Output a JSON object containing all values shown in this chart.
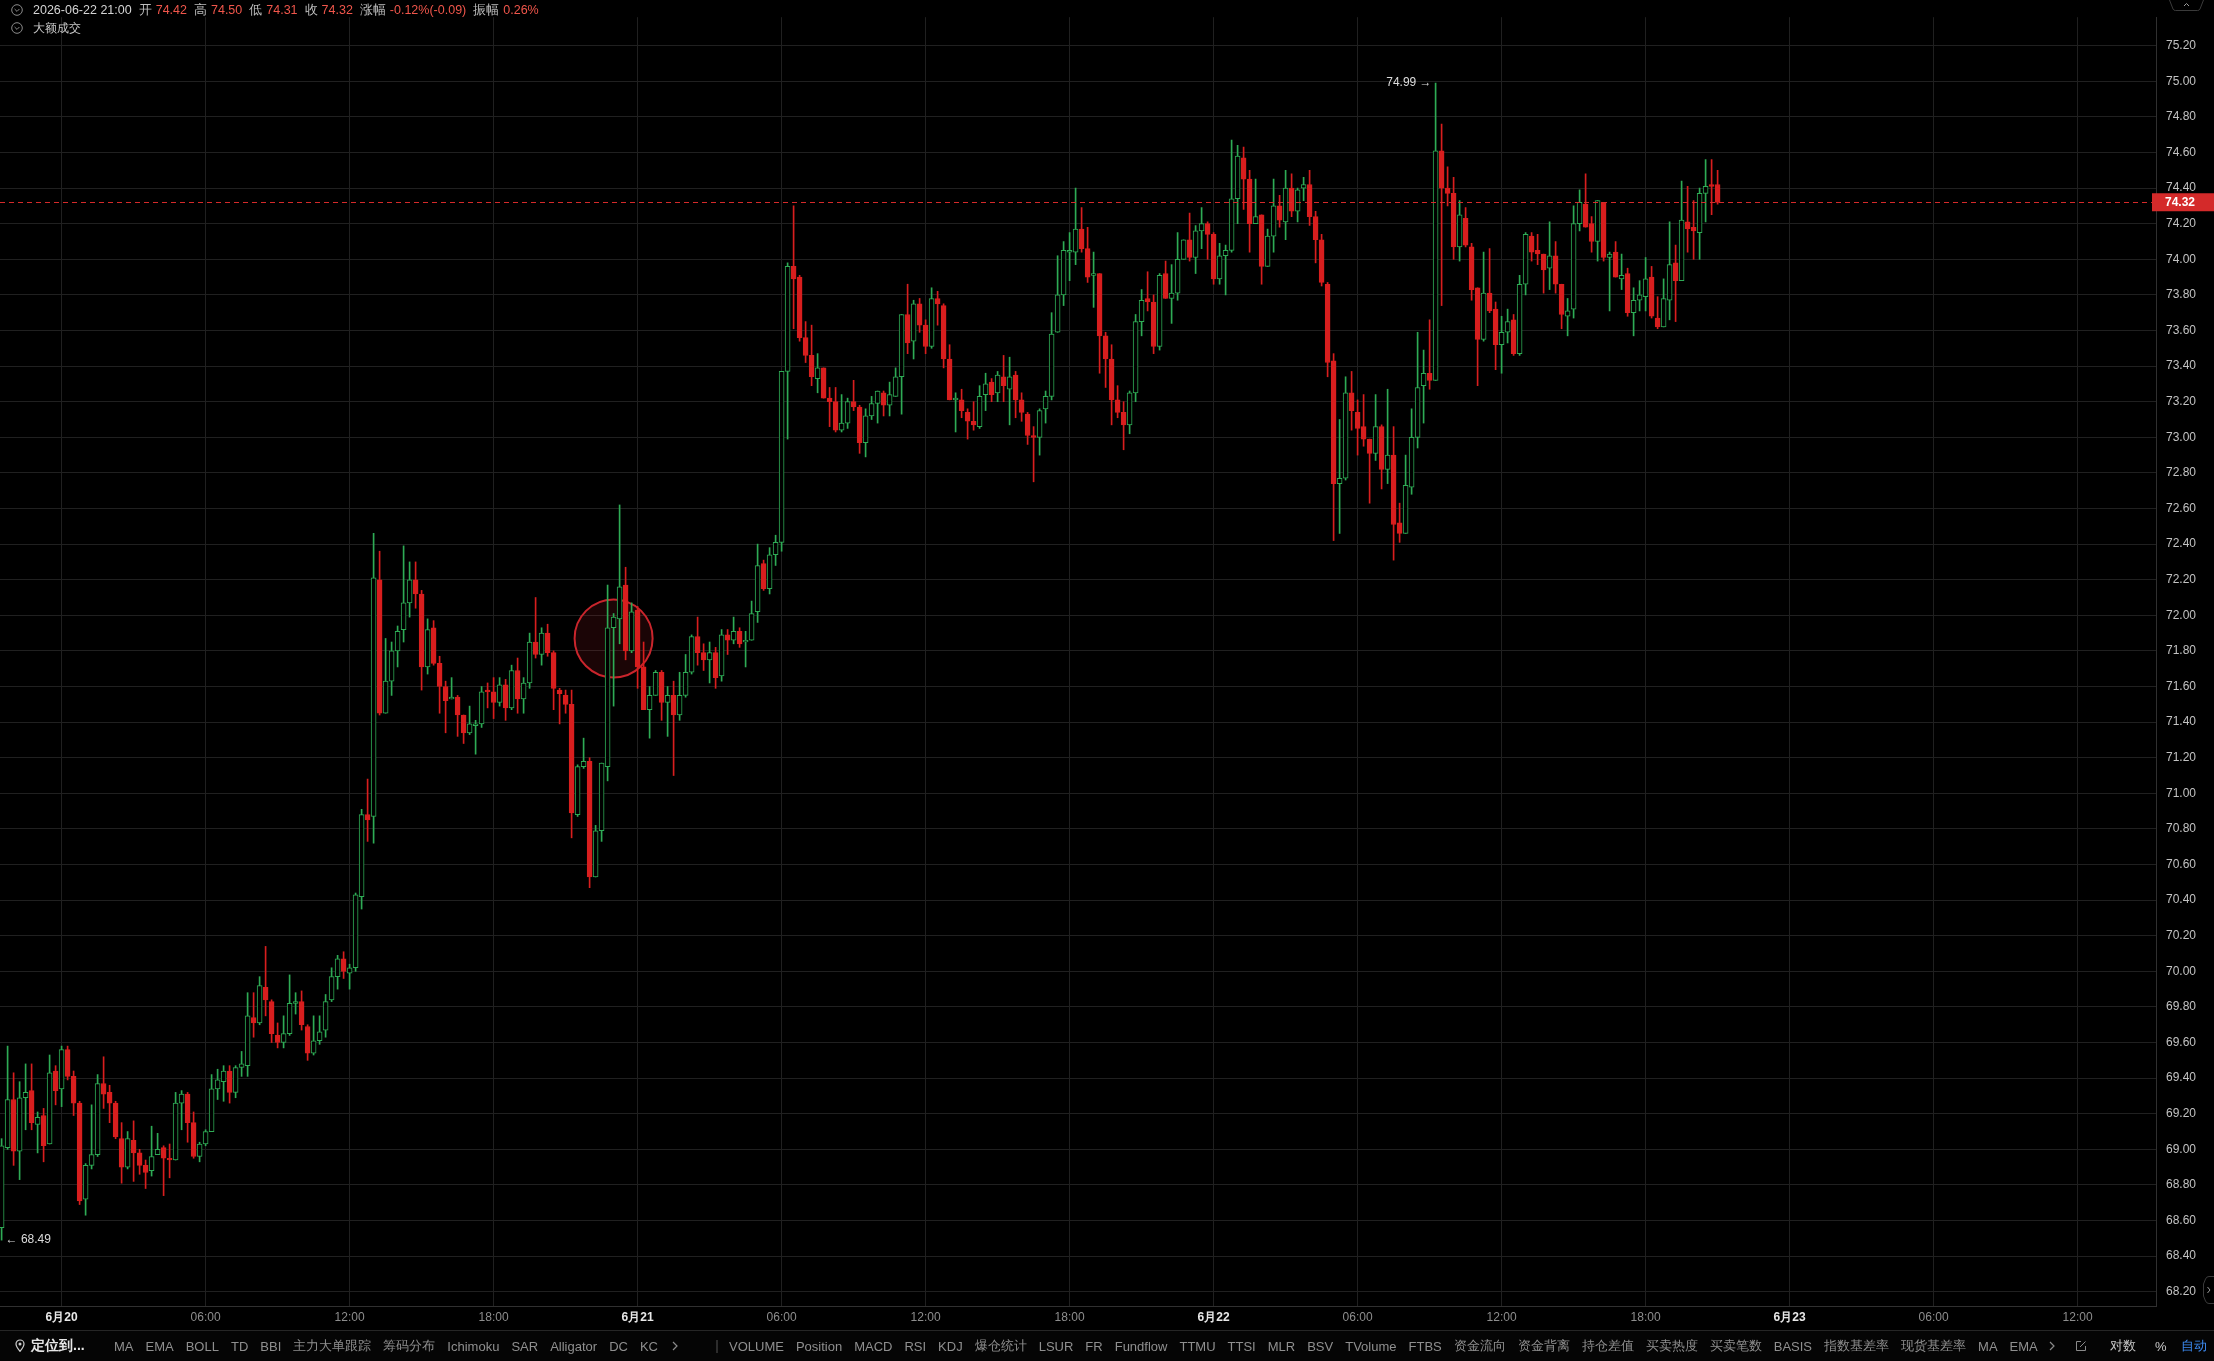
{
  "chart_data": {
    "type": "candlestick",
    "title": "2026-06-22 21:00 开 74.42 高 74.50 低 74.31 收 74.32 涨幅 -0.12%(-0.09) 振幅 0.26%",
    "subtitle": "大额成交",
    "x": [
      "2026-06-19T21:30",
      "2026-06-19T21:45",
      "2026-06-19T22:00",
      "2026-06-19T22:15",
      "2026-06-19T22:30",
      "2026-06-19T22:45",
      "2026-06-19T23:00",
      "2026-06-19T23:15",
      "2026-06-19T23:30",
      "2026-06-19T23:45",
      "2026-06-20T00:00",
      "2026-06-20T00:15",
      "2026-06-20T00:30",
      "2026-06-20T00:45",
      "2026-06-20T01:00",
      "2026-06-20T01:15",
      "2026-06-20T01:30",
      "2026-06-20T01:45",
      "2026-06-20T02:00",
      "2026-06-20T02:15",
      "2026-06-20T02:30",
      "2026-06-20T02:45",
      "2026-06-20T03:00",
      "2026-06-20T03:15",
      "2026-06-20T03:30",
      "2026-06-20T03:45",
      "2026-06-20T04:00",
      "2026-06-20T04:15",
      "2026-06-20T04:30",
      "2026-06-20T04:45",
      "2026-06-20T05:00",
      "2026-06-20T05:15",
      "2026-06-20T05:30",
      "2026-06-20T05:45",
      "2026-06-20T06:00",
      "2026-06-20T06:15",
      "2026-06-20T06:30",
      "2026-06-20T06:45",
      "2026-06-20T07:00",
      "2026-06-20T07:15",
      "2026-06-20T07:30",
      "2026-06-20T07:45",
      "2026-06-20T08:00",
      "2026-06-20T08:15",
      "2026-06-20T08:30",
      "2026-06-20T08:45",
      "2026-06-20T09:00",
      "2026-06-20T09:15",
      "2026-06-20T09:30",
      "2026-06-20T09:45",
      "2026-06-20T10:00",
      "2026-06-20T10:15",
      "2026-06-20T10:30",
      "2026-06-20T10:45",
      "2026-06-20T11:00",
      "2026-06-20T11:15",
      "2026-06-20T11:30",
      "2026-06-20T11:45",
      "2026-06-20T12:00",
      "2026-06-20T12:15",
      "2026-06-20T12:30",
      "2026-06-20T12:45",
      "2026-06-20T13:00",
      "2026-06-20T13:15",
      "2026-06-20T13:30",
      "2026-06-20T13:45",
      "2026-06-20T14:00",
      "2026-06-20T14:15",
      "2026-06-20T14:30",
      "2026-06-20T14:45",
      "2026-06-20T15:00",
      "2026-06-20T15:15",
      "2026-06-20T15:30",
      "2026-06-20T15:45",
      "2026-06-20T16:00",
      "2026-06-20T16:15",
      "2026-06-20T16:30",
      "2026-06-20T16:45",
      "2026-06-20T17:00",
      "2026-06-20T17:15",
      "2026-06-20T17:30",
      "2026-06-20T17:45",
      "2026-06-20T18:00",
      "2026-06-20T18:15",
      "2026-06-20T18:30",
      "2026-06-20T18:45",
      "2026-06-20T19:00",
      "2026-06-20T19:15",
      "2026-06-20T19:30",
      "2026-06-20T19:45",
      "2026-06-20T20:00",
      "2026-06-20T20:15",
      "2026-06-20T20:30",
      "2026-06-20T20:45",
      "2026-06-20T21:00",
      "2026-06-20T21:15",
      "2026-06-20T21:30",
      "2026-06-20T21:45",
      "2026-06-20T22:00",
      "2026-06-20T22:15",
      "2026-06-20T22:30",
      "2026-06-20T22:45",
      "2026-06-20T23:00",
      "2026-06-20T23:15",
      "2026-06-20T23:30",
      "2026-06-20T23:45",
      "2026-06-21T00:00",
      "2026-06-21T00:15",
      "2026-06-21T00:30",
      "2026-06-21T00:45",
      "2026-06-21T01:00",
      "2026-06-21T01:15",
      "2026-06-21T01:30",
      "2026-06-21T01:45",
      "2026-06-21T02:00",
      "2026-06-21T02:15",
      "2026-06-21T02:30",
      "2026-06-21T02:45",
      "2026-06-21T03:00",
      "2026-06-21T03:15",
      "2026-06-21T03:30",
      "2026-06-21T03:45",
      "2026-06-21T04:00",
      "2026-06-21T04:15",
      "2026-06-21T04:30",
      "2026-06-21T04:45",
      "2026-06-21T05:00",
      "2026-06-21T05:15",
      "2026-06-21T05:30",
      "2026-06-21T05:45",
      "2026-06-21T06:00",
      "2026-06-21T06:15",
      "2026-06-21T06:30",
      "2026-06-21T06:45",
      "2026-06-21T07:00",
      "2026-06-21T07:15",
      "2026-06-21T07:30",
      "2026-06-21T07:45",
      "2026-06-21T08:00",
      "2026-06-21T08:15",
      "2026-06-21T08:30",
      "2026-06-21T08:45",
      "2026-06-21T09:00",
      "2026-06-21T09:15",
      "2026-06-21T09:30",
      "2026-06-21T09:45",
      "2026-06-21T10:00",
      "2026-06-21T10:15",
      "2026-06-21T10:30",
      "2026-06-21T10:45",
      "2026-06-21T11:00",
      "2026-06-21T11:15",
      "2026-06-21T11:30",
      "2026-06-21T11:45",
      "2026-06-21T12:00",
      "2026-06-21T12:15",
      "2026-06-21T12:30",
      "2026-06-21T12:45",
      "2026-06-21T13:00",
      "2026-06-21T13:15",
      "2026-06-21T13:30",
      "2026-06-21T13:45",
      "2026-06-21T14:00",
      "2026-06-21T14:15",
      "2026-06-21T14:30",
      "2026-06-21T14:45",
      "2026-06-21T15:00",
      "2026-06-21T15:15",
      "2026-06-21T15:30",
      "2026-06-21T15:45",
      "2026-06-21T16:00",
      "2026-06-21T16:15",
      "2026-06-21T16:30",
      "2026-06-21T16:45",
      "2026-06-21T17:00",
      "2026-06-21T17:15",
      "2026-06-21T17:30",
      "2026-06-21T17:45",
      "2026-06-21T18:00",
      "2026-06-21T18:15",
      "2026-06-21T18:30",
      "2026-06-21T18:45",
      "2026-06-21T19:00",
      "2026-06-21T19:15",
      "2026-06-21T19:30",
      "2026-06-21T19:45",
      "2026-06-21T20:00",
      "2026-06-21T20:15",
      "2026-06-21T20:30",
      "2026-06-21T20:45",
      "2026-06-21T21:00",
      "2026-06-21T21:15",
      "2026-06-21T21:30",
      "2026-06-21T21:45",
      "2026-06-21T22:00",
      "2026-06-21T22:15",
      "2026-06-21T22:30",
      "2026-06-21T22:45",
      "2026-06-21T23:00",
      "2026-06-21T23:15",
      "2026-06-21T23:30",
      "2026-06-21T23:45",
      "2026-06-22T00:00",
      "2026-06-22T00:15",
      "2026-06-22T00:30",
      "2026-06-22T00:45",
      "2026-06-22T01:00",
      "2026-06-22T01:15",
      "2026-06-22T01:30",
      "2026-06-22T01:45",
      "2026-06-22T02:00",
      "2026-06-22T02:15",
      "2026-06-22T02:30",
      "2026-06-22T02:45",
      "2026-06-22T03:00",
      "2026-06-22T03:15",
      "2026-06-22T03:30",
      "2026-06-22T03:45",
      "2026-06-22T04:00",
      "2026-06-22T04:15",
      "2026-06-22T04:30",
      "2026-06-22T04:45",
      "2026-06-22T05:00",
      "2026-06-22T05:15",
      "2026-06-22T05:30",
      "2026-06-22T05:45",
      "2026-06-22T06:00",
      "2026-06-22T06:15",
      "2026-06-22T06:30",
      "2026-06-22T06:45",
      "2026-06-22T07:00",
      "2026-06-22T07:15",
      "2026-06-22T07:30",
      "2026-06-22T07:45",
      "2026-06-22T08:00",
      "2026-06-22T08:15",
      "2026-06-22T08:30",
      "2026-06-22T08:45",
      "2026-06-22T09:00",
      "2026-06-22T09:15",
      "2026-06-22T09:30",
      "2026-06-22T09:45",
      "2026-06-22T10:00",
      "2026-06-22T10:15",
      "2026-06-22T10:30",
      "2026-06-22T10:45",
      "2026-06-22T11:00",
      "2026-06-22T11:15",
      "2026-06-22T11:30",
      "2026-06-22T11:45",
      "2026-06-22T12:00",
      "2026-06-22T12:15",
      "2026-06-22T12:30",
      "2026-06-22T12:45",
      "2026-06-22T13:00",
      "2026-06-22T13:15",
      "2026-06-22T13:30",
      "2026-06-22T13:45",
      "2026-06-22T14:00",
      "2026-06-22T14:15",
      "2026-06-22T14:30",
      "2026-06-22T14:45",
      "2026-06-22T15:00",
      "2026-06-22T15:15",
      "2026-06-22T15:30",
      "2026-06-22T15:45",
      "2026-06-22T16:00",
      "2026-06-22T16:15",
      "2026-06-22T16:30",
      "2026-06-22T16:45",
      "2026-06-22T17:00",
      "2026-06-22T17:15",
      "2026-06-22T17:30",
      "2026-06-22T17:45",
      "2026-06-22T18:00",
      "2026-06-22T18:15",
      "2026-06-22T18:30",
      "2026-06-22T18:45",
      "2026-06-22T19:00",
      "2026-06-22T19:15",
      "2026-06-22T19:30",
      "2026-06-22T19:45",
      "2026-06-22T20:00",
      "2026-06-22T20:15",
      "2026-06-22T20:30",
      "2026-06-22T20:45",
      "2026-06-22T21:00"
    ],
    "ohlc": [
      [
        68.56,
        69.06,
        68.49,
        69.02
      ],
      [
        69.01,
        69.58,
        69.0,
        69.28
      ],
      [
        69.28,
        69.43,
        68.91,
        68.99
      ],
      [
        68.99,
        69.38,
        68.83,
        69.29
      ],
      [
        69.29,
        69.48,
        69.11,
        69.32
      ],
      [
        69.33,
        69.48,
        69.11,
        69.15
      ],
      [
        69.14,
        69.21,
        68.98,
        69.18
      ],
      [
        69.19,
        69.23,
        68.93,
        69.02
      ],
      [
        69.03,
        69.53,
        69.03,
        69.43
      ],
      [
        69.44,
        69.47,
        69.25,
        69.33
      ],
      [
        69.34,
        69.58,
        69.24,
        69.56
      ],
      [
        69.56,
        69.58,
        69.39,
        69.41
      ],
      [
        69.41,
        69.44,
        69.19,
        69.26
      ],
      [
        69.26,
        69.27,
        68.69,
        68.71
      ],
      [
        68.72,
        68.92,
        68.63,
        68.91
      ],
      [
        68.91,
        69.25,
        68.89,
        68.97
      ],
      [
        68.97,
        69.42,
        68.96,
        69.37
      ],
      [
        69.37,
        69.52,
        69.23,
        69.31
      ],
      [
        69.32,
        69.36,
        69.15,
        69.26
      ],
      [
        69.26,
        69.27,
        69.06,
        69.07
      ],
      [
        69.06,
        69.15,
        68.81,
        68.9
      ],
      [
        68.9,
        69.1,
        68.89,
        69.06
      ],
      [
        69.05,
        69.16,
        68.82,
        68.98
      ],
      [
        68.98,
        69.0,
        68.86,
        68.91
      ],
      [
        68.91,
        68.94,
        68.78,
        68.87
      ],
      [
        68.88,
        69.13,
        68.85,
        68.96
      ],
      [
        68.97,
        69.09,
        68.97,
        69.0
      ],
      [
        69.01,
        69.02,
        68.74,
        68.95
      ],
      [
        68.95,
        69.03,
        68.84,
        68.94
      ],
      [
        68.94,
        69.32,
        68.94,
        69.26
      ],
      [
        69.26,
        69.33,
        69.11,
        69.31
      ],
      [
        69.31,
        69.32,
        69.04,
        69.15
      ],
      [
        69.15,
        69.21,
        68.95,
        68.96
      ],
      [
        68.96,
        69.04,
        68.93,
        69.03
      ],
      [
        69.03,
        69.11,
        69.02,
        69.1
      ],
      [
        69.1,
        69.42,
        69.1,
        69.34
      ],
      [
        69.34,
        69.45,
        69.28,
        69.39
      ],
      [
        69.38,
        69.47,
        69.27,
        69.44
      ],
      [
        69.44,
        69.47,
        69.26,
        69.32
      ],
      [
        69.32,
        69.47,
        69.29,
        69.46
      ],
      [
        69.46,
        69.55,
        69.41,
        69.48
      ],
      [
        69.47,
        69.88,
        69.41,
        69.75
      ],
      [
        69.74,
        69.88,
        69.63,
        69.71
      ],
      [
        69.71,
        69.97,
        69.7,
        69.92
      ],
      [
        69.91,
        70.14,
        69.75,
        69.84
      ],
      [
        69.83,
        69.84,
        69.6,
        69.65
      ],
      [
        69.64,
        69.71,
        69.57,
        69.6
      ],
      [
        69.6,
        69.75,
        69.57,
        69.65
      ],
      [
        69.65,
        69.98,
        69.64,
        69.82
      ],
      [
        69.82,
        69.88,
        69.76,
        69.83
      ],
      [
        69.83,
        69.89,
        69.67,
        69.7
      ],
      [
        69.69,
        69.7,
        69.5,
        69.54
      ],
      [
        69.54,
        69.75,
        69.53,
        69.61
      ],
      [
        69.61,
        69.75,
        69.59,
        69.66
      ],
      [
        69.67,
        69.87,
        69.63,
        69.83
      ],
      [
        69.84,
        70.02,
        69.83,
        69.97
      ],
      [
        69.97,
        70.09,
        69.9,
        70.07
      ],
      [
        70.07,
        70.11,
        69.96,
        70.0
      ],
      [
        69.99,
        70.04,
        69.9,
        70.02
      ],
      [
        70.02,
        70.44,
        70.0,
        70.43
      ],
      [
        70.42,
        70.91,
        70.35,
        70.88
      ],
      [
        70.88,
        71.08,
        70.73,
        70.85
      ],
      [
        70.87,
        72.46,
        70.72,
        72.21
      ],
      [
        72.2,
        72.36,
        71.44,
        71.45
      ],
      [
        71.45,
        71.87,
        71.45,
        71.63
      ],
      [
        71.63,
        71.85,
        71.55,
        71.8
      ],
      [
        71.8,
        71.94,
        71.71,
        71.91
      ],
      [
        71.92,
        72.39,
        71.85,
        72.07
      ],
      [
        72.07,
        72.3,
        71.99,
        72.2
      ],
      [
        72.2,
        72.3,
        72.04,
        72.12
      ],
      [
        72.12,
        72.14,
        71.58,
        71.71
      ],
      [
        71.71,
        71.98,
        71.67,
        71.92
      ],
      [
        71.93,
        71.97,
        71.72,
        71.73
      ],
      [
        71.73,
        71.77,
        71.45,
        71.6
      ],
      [
        71.6,
        71.63,
        71.34,
        71.52
      ],
      [
        71.53,
        71.65,
        71.53,
        71.54
      ],
      [
        71.54,
        71.55,
        71.32,
        71.44
      ],
      [
        71.44,
        71.44,
        71.28,
        71.34
      ],
      [
        71.34,
        71.49,
        71.33,
        71.39
      ],
      [
        71.38,
        71.41,
        71.22,
        71.39
      ],
      [
        71.39,
        71.6,
        71.37,
        71.57
      ],
      [
        71.58,
        71.62,
        71.48,
        71.57
      ],
      [
        71.57,
        71.65,
        71.42,
        71.51
      ],
      [
        71.51,
        71.65,
        71.49,
        71.61
      ],
      [
        71.61,
        71.64,
        71.41,
        71.48
      ],
      [
        71.48,
        71.72,
        71.47,
        71.69
      ],
      [
        71.69,
        71.76,
        71.45,
        71.53
      ],
      [
        71.53,
        71.65,
        71.45,
        71.62
      ],
      [
        71.62,
        71.9,
        71.59,
        71.85
      ],
      [
        71.85,
        72.1,
        71.76,
        71.78
      ],
      [
        71.78,
        71.93,
        71.72,
        71.9
      ],
      [
        71.9,
        71.95,
        71.77,
        71.79
      ],
      [
        71.79,
        71.8,
        71.47,
        71.59
      ],
      [
        71.58,
        71.59,
        71.39,
        71.56
      ],
      [
        71.55,
        71.58,
        71.45,
        71.5
      ],
      [
        71.5,
        71.58,
        70.75,
        70.89
      ],
      [
        70.88,
        71.16,
        70.87,
        71.15
      ],
      [
        71.15,
        71.31,
        71.14,
        71.18
      ],
      [
        71.18,
        71.2,
        70.47,
        70.53
      ],
      [
        70.53,
        70.82,
        70.53,
        70.79
      ],
      [
        70.79,
        71.17,
        70.73,
        71.17
      ],
      [
        71.15,
        72.17,
        71.07,
        71.93
      ],
      [
        71.93,
        72.01,
        71.49,
        71.99
      ],
      [
        71.98,
        72.62,
        71.84,
        72.16
      ],
      [
        72.17,
        72.27,
        71.75,
        71.8
      ],
      [
        71.8,
        72.07,
        71.79,
        72.02
      ],
      [
        72.03,
        72.05,
        71.59,
        71.71
      ],
      [
        71.71,
        71.85,
        71.47,
        71.47
      ],
      [
        71.47,
        71.6,
        71.31,
        71.55
      ],
      [
        71.55,
        71.69,
        71.55,
        71.68
      ],
      [
        71.68,
        71.69,
        71.41,
        71.51
      ],
      [
        71.51,
        71.6,
        71.32,
        71.55
      ],
      [
        71.55,
        71.63,
        71.1,
        71.44
      ],
      [
        71.44,
        71.68,
        71.41,
        71.55
      ],
      [
        71.55,
        71.78,
        71.54,
        71.68
      ],
      [
        71.68,
        71.89,
        71.67,
        71.88
      ],
      [
        71.88,
        71.99,
        71.72,
        71.79
      ],
      [
        71.79,
        71.84,
        71.69,
        71.75
      ],
      [
        71.75,
        71.85,
        71.62,
        71.79
      ],
      [
        71.79,
        71.82,
        71.59,
        71.65
      ],
      [
        71.66,
        71.92,
        71.63,
        71.89
      ],
      [
        71.89,
        71.92,
        71.78,
        71.86
      ],
      [
        71.86,
        71.99,
        71.84,
        71.91
      ],
      [
        71.91,
        71.93,
        71.82,
        71.84
      ],
      [
        71.85,
        71.91,
        71.71,
        71.86
      ],
      [
        71.86,
        72.08,
        71.86,
        72.01
      ],
      [
        72.02,
        72.4,
        71.96,
        72.28
      ],
      [
        72.29,
        72.31,
        72.14,
        72.15
      ],
      [
        72.15,
        72.38,
        72.12,
        72.34
      ],
      [
        72.34,
        72.45,
        72.28,
        72.41
      ],
      [
        72.41,
        73.37,
        72.36,
        73.37
      ],
      [
        73.37,
        73.98,
        72.99,
        73.96
      ],
      [
        73.96,
        74.3,
        73.61,
        73.89
      ],
      [
        73.9,
        73.91,
        73.54,
        73.56
      ],
      [
        73.56,
        73.65,
        73.42,
        73.46
      ],
      [
        73.46,
        73.63,
        73.29,
        73.34
      ],
      [
        73.33,
        73.47,
        73.25,
        73.39
      ],
      [
        73.39,
        73.39,
        73.22,
        73.22
      ],
      [
        73.22,
        73.28,
        73.06,
        73.2
      ],
      [
        73.2,
        73.28,
        73.03,
        73.04
      ],
      [
        73.04,
        73.24,
        73.03,
        73.08
      ],
      [
        73.08,
        73.22,
        73.05,
        73.2
      ],
      [
        73.2,
        73.32,
        73.15,
        73.17
      ],
      [
        73.17,
        73.18,
        72.91,
        72.97
      ],
      [
        72.97,
        73.16,
        72.89,
        73.12
      ],
      [
        73.12,
        73.23,
        73.1,
        73.19
      ],
      [
        73.19,
        73.26,
        73.08,
        73.26
      ],
      [
        73.25,
        73.26,
        73.12,
        73.18
      ],
      [
        73.18,
        73.31,
        73.12,
        73.24
      ],
      [
        73.23,
        73.39,
        73.23,
        73.34
      ],
      [
        73.34,
        73.69,
        73.13,
        73.69
      ],
      [
        73.69,
        73.86,
        73.47,
        73.53
      ],
      [
        73.54,
        73.77,
        73.44,
        73.75
      ],
      [
        73.75,
        73.78,
        73.59,
        73.63
      ],
      [
        73.63,
        73.66,
        73.47,
        73.51
      ],
      [
        73.51,
        73.84,
        73.5,
        73.78
      ],
      [
        73.78,
        73.82,
        73.63,
        73.75
      ],
      [
        73.74,
        73.75,
        73.39,
        73.44
      ],
      [
        73.44,
        73.52,
        73.21,
        73.21
      ],
      [
        73.21,
        73.25,
        73.03,
        73.22
      ],
      [
        73.21,
        73.27,
        73.11,
        73.15
      ],
      [
        73.14,
        73.16,
        72.99,
        73.09
      ],
      [
        73.09,
        73.2,
        73.04,
        73.07
      ],
      [
        73.06,
        73.29,
        73.05,
        73.23
      ],
      [
        73.24,
        73.36,
        73.15,
        73.3
      ],
      [
        73.31,
        73.33,
        73.2,
        73.24
      ],
      [
        73.25,
        73.37,
        73.2,
        73.35
      ],
      [
        73.34,
        73.46,
        73.2,
        73.29
      ],
      [
        73.27,
        73.45,
        73.07,
        73.34
      ],
      [
        73.35,
        73.37,
        73.11,
        73.21
      ],
      [
        73.21,
        73.25,
        73.09,
        73.14
      ],
      [
        73.13,
        73.14,
        72.96,
        73.01
      ],
      [
        73.01,
        73.06,
        72.75,
        73.0
      ],
      [
        73.0,
        73.16,
        72.9,
        73.15
      ],
      [
        73.16,
        73.26,
        73.08,
        73.23
      ],
      [
        73.23,
        73.7,
        73.21,
        73.58
      ],
      [
        73.59,
        74.02,
        73.59,
        73.8
      ],
      [
        73.8,
        74.1,
        73.74,
        74.05
      ],
      [
        74.04,
        74.15,
        73.88,
        74.05
      ],
      [
        74.04,
        74.4,
        73.97,
        74.17
      ],
      [
        74.17,
        74.29,
        74.04,
        74.06
      ],
      [
        74.06,
        74.18,
        73.87,
        73.9
      ],
      [
        73.91,
        74.04,
        73.73,
        73.92
      ],
      [
        73.92,
        73.92,
        73.36,
        73.57
      ],
      [
        73.57,
        73.59,
        73.28,
        73.44
      ],
      [
        73.44,
        73.52,
        73.07,
        73.21
      ],
      [
        73.21,
        73.29,
        73.11,
        73.14
      ],
      [
        73.14,
        73.2,
        72.93,
        73.07
      ],
      [
        73.07,
        73.26,
        73.02,
        73.25
      ],
      [
        73.25,
        73.69,
        73.2,
        73.65
      ],
      [
        73.65,
        73.83,
        73.57,
        73.77
      ],
      [
        73.78,
        73.93,
        73.71,
        73.76
      ],
      [
        73.76,
        73.8,
        73.47,
        73.51
      ],
      [
        73.51,
        73.92,
        73.49,
        73.91
      ],
      [
        73.92,
        73.99,
        73.78,
        73.78
      ],
      [
        73.78,
        73.97,
        73.64,
        73.81
      ],
      [
        73.81,
        74.15,
        73.77,
        74.0
      ],
      [
        74.0,
        74.11,
        74.0,
        74.11
      ],
      [
        74.11,
        74.26,
        73.99,
        74.01
      ],
      [
        74.01,
        74.19,
        73.92,
        74.16
      ],
      [
        74.16,
        74.29,
        74.06,
        74.2
      ],
      [
        74.2,
        74.21,
        74.0,
        74.14
      ],
      [
        74.14,
        74.15,
        73.86,
        73.89
      ],
      [
        73.89,
        74.09,
        73.86,
        74.02
      ],
      [
        74.02,
        74.08,
        73.8,
        74.05
      ],
      [
        74.05,
        74.67,
        74.04,
        74.34
      ],
      [
        74.34,
        74.64,
        74.2,
        74.58
      ],
      [
        74.57,
        74.63,
        74.28,
        74.45
      ],
      [
        74.45,
        74.5,
        74.04,
        74.2
      ],
      [
        74.2,
        74.45,
        74.2,
        74.24
      ],
      [
        74.25,
        74.25,
        73.86,
        73.96
      ],
      [
        73.96,
        74.17,
        73.96,
        74.13
      ],
      [
        74.13,
        74.45,
        74.04,
        74.3
      ],
      [
        74.3,
        74.36,
        74.18,
        74.22
      ],
      [
        74.21,
        74.5,
        74.11,
        74.4
      ],
      [
        74.4,
        74.48,
        74.24,
        74.27
      ],
      [
        74.27,
        74.4,
        74.21,
        74.39
      ],
      [
        74.4,
        74.46,
        74.33,
        74.42
      ],
      [
        74.42,
        74.5,
        74.19,
        74.24
      ],
      [
        74.24,
        74.27,
        73.98,
        74.11
      ],
      [
        74.11,
        74.14,
        73.85,
        73.87
      ],
      [
        73.86,
        73.87,
        73.34,
        73.42
      ],
      [
        73.43,
        73.47,
        72.42,
        72.74
      ],
      [
        72.74,
        73.1,
        72.46,
        72.77
      ],
      [
        72.77,
        73.34,
        72.76,
        73.25
      ],
      [
        73.25,
        73.37,
        73.04,
        73.15
      ],
      [
        73.14,
        73.21,
        72.9,
        73.05
      ],
      [
        73.06,
        73.24,
        72.95,
        72.99
      ],
      [
        72.99,
        72.99,
        72.63,
        72.91
      ],
      [
        72.91,
        73.24,
        72.87,
        73.06
      ],
      [
        73.06,
        73.07,
        72.71,
        72.82
      ],
      [
        72.82,
        73.27,
        72.74,
        72.9
      ],
      [
        72.9,
        73.06,
        72.31,
        72.51
      ],
      [
        72.52,
        72.63,
        72.41,
        72.46
      ],
      [
        72.46,
        72.9,
        72.46,
        72.73
      ],
      [
        72.72,
        73.16,
        72.68,
        73.0
      ],
      [
        73.0,
        73.59,
        72.94,
        73.28
      ],
      [
        73.29,
        73.49,
        73.08,
        73.36
      ],
      [
        73.36,
        73.66,
        73.27,
        73.32
      ],
      [
        73.32,
        74.99,
        73.32,
        74.61
      ],
      [
        74.61,
        74.76,
        73.74,
        74.4
      ],
      [
        74.4,
        74.52,
        74.3,
        74.37
      ],
      [
        74.37,
        74.46,
        74.0,
        74.07
      ],
      [
        74.07,
        74.33,
        73.99,
        74.25
      ],
      [
        74.23,
        74.29,
        74.07,
        74.08
      ],
      [
        74.07,
        74.09,
        73.77,
        73.83
      ],
      [
        73.84,
        73.84,
        73.29,
        73.55
      ],
      [
        73.55,
        74.04,
        73.54,
        73.81
      ],
      [
        73.81,
        74.06,
        73.7,
        73.71
      ],
      [
        73.72,
        73.76,
        73.38,
        73.52
      ],
      [
        73.52,
        73.68,
        73.36,
        73.59
      ],
      [
        73.59,
        73.72,
        73.53,
        73.65
      ],
      [
        73.66,
        73.69,
        73.46,
        73.47
      ],
      [
        73.47,
        73.91,
        73.46,
        73.86
      ],
      [
        73.86,
        74.15,
        73.8,
        74.14
      ],
      [
        74.13,
        74.15,
        73.99,
        74.04
      ],
      [
        74.05,
        74.14,
        73.97,
        74.03
      ],
      [
        74.03,
        74.03,
        73.81,
        73.94
      ],
      [
        73.95,
        74.21,
        73.83,
        74.02
      ],
      [
        74.02,
        74.1,
        73.81,
        73.86
      ],
      [
        73.86,
        73.86,
        73.61,
        73.69
      ],
      [
        73.68,
        73.78,
        73.57,
        73.71
      ],
      [
        73.72,
        74.3,
        73.67,
        74.2
      ],
      [
        74.2,
        74.39,
        74.16,
        74.32
      ],
      [
        74.31,
        74.48,
        74.18,
        74.18
      ],
      [
        74.2,
        74.24,
        74.04,
        74.1
      ],
      [
        74.1,
        74.33,
        73.99,
        74.33
      ],
      [
        74.32,
        74.32,
        73.99,
        74.01
      ],
      [
        74.01,
        74.04,
        73.71,
        74.03
      ],
      [
        74.04,
        74.1,
        73.9,
        73.9
      ],
      [
        73.89,
        74.03,
        73.83,
        73.91
      ],
      [
        73.92,
        73.95,
        73.68,
        73.7
      ],
      [
        73.7,
        73.84,
        73.57,
        73.77
      ],
      [
        73.77,
        73.88,
        73.71,
        73.8
      ],
      [
        73.79,
        74.01,
        73.71,
        73.89
      ],
      [
        73.9,
        73.96,
        73.67,
        73.68
      ],
      [
        73.67,
        73.79,
        73.61,
        73.62
      ],
      [
        73.62,
        73.89,
        73.62,
        73.78
      ],
      [
        73.77,
        74.21,
        73.66,
        73.97
      ],
      [
        73.98,
        74.08,
        73.65,
        73.88
      ],
      [
        73.88,
        74.44,
        73.88,
        74.22
      ],
      [
        74.21,
        74.41,
        74.04,
        74.17
      ],
      [
        74.18,
        74.33,
        74.0,
        74.16
      ],
      [
        74.15,
        74.4,
        74.0,
        74.37
      ],
      [
        74.37,
        74.56,
        74.21,
        74.41
      ],
      [
        74.42,
        74.56,
        74.25,
        74.41
      ],
      [
        74.42,
        74.5,
        74.31,
        74.32
      ]
    ],
    "colors": [
      "#2eab55",
      "#2eab55",
      "#d81e1e",
      "#2eab55",
      "#2eab55",
      "#d81e1e",
      "#2eab55",
      "#d81e1e",
      "#2eab55",
      "#d81e1e",
      "#2eab55",
      "#d81e1e",
      "#d81e1e",
      "#d81e1e",
      "#2eab55",
      "#2eab55",
      "#2eab55",
      "#d81e1e",
      "#d81e1e",
      "#d81e1e",
      "#d81e1e",
      "#2eab55",
      "#d81e1e",
      "#d81e1e",
      "#d81e1e",
      "#2eab55",
      "#2eab55",
      "#d81e1e",
      "#d81e1e",
      "#2eab55",
      "#2eab55",
      "#d81e1e",
      "#d81e1e",
      "#2eab55",
      "#2eab55",
      "#2eab55",
      "#2eab55",
      "#2eab55",
      "#d81e1e",
      "#2eab55",
      "#2eab55",
      "#2eab55",
      "#d81e1e",
      "#2eab55",
      "#d81e1e",
      "#d81e1e",
      "#d81e1e",
      "#2eab55",
      "#2eab55",
      "#2eab55",
      "#d81e1e",
      "#d81e1e",
      "#2eab55",
      "#2eab55",
      "#2eab55",
      "#2eab55",
      "#2eab55",
      "#d81e1e",
      "#2eab55",
      "#2eab55",
      "#2eab55",
      "#d81e1e",
      "#2eab55",
      "#d81e1e",
      "#2eab55",
      "#2eab55",
      "#2eab55",
      "#2eab55",
      "#2eab55",
      "#d81e1e",
      "#d81e1e",
      "#2eab55",
      "#d81e1e",
      "#d81e1e",
      "#d81e1e",
      "#2eab55",
      "#d81e1e",
      "#d81e1e",
      "#2eab55",
      "#2eab55",
      "#2eab55",
      "#d81e1e",
      "#d81e1e",
      "#2eab55",
      "#d81e1e",
      "#2eab55",
      "#d81e1e",
      "#2eab55",
      "#2eab55",
      "#d81e1e",
      "#2eab55",
      "#d81e1e",
      "#d81e1e",
      "#d81e1e",
      "#d81e1e",
      "#d81e1e",
      "#2eab55",
      "#2eab55",
      "#d81e1e",
      "#2eab55",
      "#2eab55",
      "#2eab55",
      "#2eab55",
      "#2eab55",
      "#d81e1e",
      "#2eab55",
      "#d81e1e",
      "#d81e1e",
      "#2eab55",
      "#2eab55",
      "#d81e1e",
      "#2eab55",
      "#d81e1e",
      "#2eab55",
      "#2eab55",
      "#2eab55",
      "#d81e1e",
      "#d81e1e",
      "#2eab55",
      "#d81e1e",
      "#2eab55",
      "#d81e1e",
      "#2eab55",
      "#d81e1e",
      "#2eab55",
      "#2eab55",
      "#2eab55",
      "#d81e1e",
      "#2eab55",
      "#2eab55",
      "#2eab55",
      "#2eab55",
      "#d81e1e",
      "#d81e1e",
      "#d81e1e",
      "#d81e1e",
      "#2eab55",
      "#d81e1e",
      "#d81e1e",
      "#d81e1e",
      "#2eab55",
      "#2eab55",
      "#d81e1e",
      "#d81e1e",
      "#2eab55",
      "#2eab55",
      "#2eab55",
      "#d81e1e",
      "#2eab55",
      "#2eab55",
      "#2eab55",
      "#d81e1e",
      "#2eab55",
      "#d81e1e",
      "#d81e1e",
      "#2eab55",
      "#d81e1e",
      "#d81e1e",
      "#d81e1e",
      "#2eab55",
      "#d81e1e",
      "#d81e1e",
      "#d81e1e",
      "#2eab55",
      "#2eab55",
      "#d81e1e",
      "#2eab55",
      "#d81e1e",
      "#2eab55",
      "#d81e1e",
      "#d81e1e",
      "#d81e1e",
      "#d81e1e",
      "#2eab55",
      "#2eab55",
      "#2eab55",
      "#2eab55",
      "#2eab55",
      "#2eab55",
      "#2eab55",
      "#d81e1e",
      "#d81e1e",
      "#2eab55",
      "#d81e1e",
      "#d81e1e",
      "#d81e1e",
      "#d81e1e",
      "#d81e1e",
      "#2eab55",
      "#2eab55",
      "#2eab55",
      "#d81e1e",
      "#d81e1e",
      "#2eab55",
      "#d81e1e",
      "#2eab55",
      "#2eab55",
      "#2eab55",
      "#d81e1e",
      "#2eab55",
      "#2eab55",
      "#d81e1e",
      "#d81e1e",
      "#2eab55",
      "#2eab55",
      "#2eab55",
      "#2eab55",
      "#d81e1e",
      "#d81e1e",
      "#2eab55",
      "#d81e1e",
      "#2eab55",
      "#2eab55",
      "#d81e1e",
      "#2eab55",
      "#d81e1e",
      "#2eab55",
      "#2eab55",
      "#d81e1e",
      "#d81e1e",
      "#d81e1e",
      "#d81e1e",
      "#d81e1e",
      "#2eab55",
      "#2eab55",
      "#d81e1e",
      "#d81e1e",
      "#d81e1e",
      "#d81e1e",
      "#2eab55",
      "#d81e1e",
      "#2eab55",
      "#d81e1e",
      "#d81e1e",
      "#2eab55",
      "#2eab55",
      "#2eab55",
      "#2eab55",
      "#d81e1e",
      "#2eab55",
      "#d81e1e",
      "#d81e1e",
      "#d81e1e",
      "#2eab55",
      "#d81e1e",
      "#d81e1e",
      "#d81e1e",
      "#2eab55",
      "#d81e1e",
      "#d81e1e",
      "#2eab55",
      "#2eab55",
      "#d81e1e",
      "#2eab55",
      "#2eab55",
      "#d81e1e",
      "#d81e1e",
      "#d81e1e",
      "#2eab55",
      "#d81e1e",
      "#d81e1e",
      "#2eab55",
      "#2eab55",
      "#2eab55",
      "#d81e1e",
      "#d81e1e",
      "#2eab55",
      "#d81e1e",
      "#2eab55",
      "#d81e1e",
      "#2eab55",
      "#d81e1e",
      "#2eab55",
      "#2eab55",
      "#2eab55",
      "#d81e1e",
      "#d81e1e",
      "#2eab55",
      "#2eab55",
      "#d81e1e",
      "#2eab55",
      "#d81e1e",
      "#d81e1e",
      "#2eab55",
      "#2eab55",
      "#d81e1e",
      "#d81e1e"
    ],
    "series": [
      {
        "type": "scatter",
        "x": [
          "2026-06-20T23:00"
        ],
        "values": [
          71.87
        ],
        "color": "#c9252c",
        "marker": "circle"
      }
    ],
    "xlim": [
      "2026-06-19T21:26",
      "2026-06-23T15:16"
    ],
    "xticks": [
      {
        "value": "2026-06-20T00:00",
        "label": "6月20"
      },
      {
        "value": "2026-06-20T06:00",
        "label": "06:00"
      },
      {
        "value": "2026-06-20T12:00",
        "label": "12:00"
      },
      {
        "value": "2026-06-20T18:00",
        "label": "18:00"
      },
      {
        "value": "2026-06-21T00:00",
        "label": "6月21"
      },
      {
        "value": "2026-06-21T06:00",
        "label": "06:00"
      },
      {
        "value": "2026-06-21T12:00",
        "label": "12:00"
      },
      {
        "value": "2026-06-21T18:00",
        "label": "18:00"
      },
      {
        "value": "2026-06-22T00:00",
        "label": "6月22"
      },
      {
        "value": "2026-06-22T06:00",
        "label": "06:00"
      },
      {
        "value": "2026-06-22T12:00",
        "label": "12:00"
      },
      {
        "value": "2026-06-22T18:00",
        "label": "18:00"
      },
      {
        "value": "2026-06-23T00:00",
        "label": "6月23"
      },
      {
        "value": "2026-06-23T06:00",
        "label": "06:00"
      },
      {
        "value": "2026-06-23T12:00",
        "label": "12:00"
      }
    ],
    "ylim": [
      68.12,
      75.36
    ],
    "yticks": [
      {
        "value": 68.2,
        "label": "68.20"
      },
      {
        "value": 68.4,
        "label": "68.40"
      },
      {
        "value": 68.6,
        "label": "68.60"
      },
      {
        "value": 68.8,
        "label": "68.80"
      },
      {
        "value": 69,
        "label": "69.00"
      },
      {
        "value": 69.2,
        "label": "69.20"
      },
      {
        "value": 69.4,
        "label": "69.40"
      },
      {
        "value": 69.6,
        "label": "69.60"
      },
      {
        "value": 69.8,
        "label": "69.80"
      },
      {
        "value": 70,
        "label": "70.00"
      },
      {
        "value": 70.2,
        "label": "70.20"
      },
      {
        "value": 70.4,
        "label": "70.40"
      },
      {
        "value": 70.6,
        "label": "70.60"
      },
      {
        "value": 70.8,
        "label": "70.80"
      },
      {
        "value": 71,
        "label": "71.00"
      },
      {
        "value": 71.2,
        "label": "71.20"
      },
      {
        "value": 71.4,
        "label": "71.40"
      },
      {
        "value": 71.6,
        "label": "71.60"
      },
      {
        "value": 71.8,
        "label": "71.80"
      },
      {
        "value": 72,
        "label": "72.00"
      },
      {
        "value": 72.2,
        "label": "72.20"
      },
      {
        "value": 72.4,
        "label": "72.40"
      },
      {
        "value": 72.6,
        "label": "72.60"
      },
      {
        "value": 72.8,
        "label": "72.80"
      },
      {
        "value": 73,
        "label": "73.00"
      },
      {
        "value": 73.2,
        "label": "73.20"
      },
      {
        "value": 73.4,
        "label": "73.40"
      },
      {
        "value": 73.6,
        "label": "73.60"
      },
      {
        "value": 73.8,
        "label": "73.80"
      },
      {
        "value": 74,
        "label": "74.00"
      },
      {
        "value": 74.2,
        "label": "74.20"
      },
      {
        "value": 74.4,
        "label": "74.40"
      },
      {
        "value": 74.6,
        "label": "74.60"
      },
      {
        "value": 74.8,
        "label": "74.80"
      },
      {
        "value": 75,
        "label": "75.00"
      },
      {
        "value": 75.2,
        "label": "75.20"
      }
    ],
    "grid": true,
    "ref_lines": [
      {
        "axis": "y",
        "value": 74.32,
        "label": "74.32",
        "color": "#d42a2a",
        "line_style": "dashed"
      }
    ],
    "annotations": [
      {
        "text": "74.99 →",
        "x": "2026-06-22T09:15",
        "y": 74.99
      },
      {
        "text": "← 68.49",
        "x": "2026-06-19T21:30",
        "y": 68.49
      },
      "定位到...",
      "MA EMA BOLL TD BBI 主力大单跟踪 筹码分布 Ichimoku SAR Alligator DC KC",
      "VOLUME Position MACD RSI KDJ 爆仓统计 LSUR FR Fundflow TTMU TTSI MLR BSV TVolume FTBS 资金流向 资金背离 持仓差值 买卖热度 买卖笔数 BASIS 指数基差率 现货基差率 MA EMA",
      "对数",
      "%",
      "自动"
    ]
  }
}
